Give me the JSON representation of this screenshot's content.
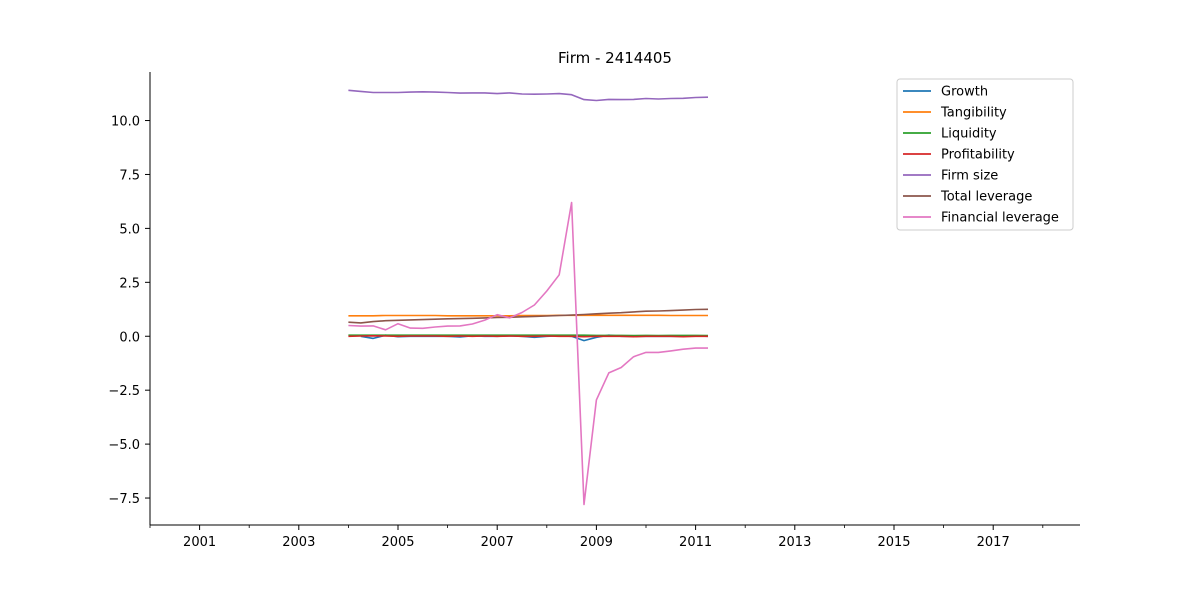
{
  "chart_data": {
    "type": "line",
    "title": "Firm - 2414405",
    "xlabel": "",
    "ylabel": "",
    "x_ticks": [
      "2001",
      "2003",
      "2005",
      "2007",
      "2009",
      "2011",
      "2013",
      "2015",
      "2017"
    ],
    "y_ticks": [
      "10.0",
      "7.5",
      "5.0",
      "2.5",
      "0.0",
      "−2.5",
      "−5.0",
      "−7.5"
    ],
    "xlim": [
      "2000-01-01",
      "2018-10-01"
    ],
    "ylim": [
      -8.75,
      12.25
    ],
    "grid": false,
    "legend_position": "top-right",
    "x": [
      "2004-01",
      "2004-04",
      "2004-07",
      "2004-10",
      "2005-01",
      "2005-04",
      "2005-07",
      "2005-10",
      "2006-01",
      "2006-04",
      "2006-07",
      "2006-10",
      "2007-01",
      "2007-04",
      "2007-07",
      "2007-10",
      "2008-01",
      "2008-04",
      "2008-07",
      "2008-10",
      "2009-01",
      "2009-04",
      "2009-07",
      "2009-10",
      "2010-01",
      "2010-04",
      "2010-07",
      "2010-10",
      "2011-01",
      "2011-04"
    ],
    "series": [
      {
        "name": "Growth",
        "color": "#1f77b4",
        "values": [
          null,
          0.0,
          -0.1,
          0.05,
          -0.02,
          0.0,
          0.0,
          0.0,
          0.0,
          -0.03,
          0.02,
          0.0,
          0.0,
          0.02,
          0.0,
          -0.05,
          0.0,
          0.02,
          0.0,
          -0.2,
          -0.05,
          0.05,
          0.0,
          0.0,
          0.0,
          0.0,
          0.0,
          0.0,
          0.02,
          0.0
        ]
      },
      {
        "name": "Tangibility",
        "color": "#ff7f0e",
        "values": [
          0.95,
          0.95,
          0.95,
          0.96,
          0.96,
          0.96,
          0.96,
          0.96,
          0.95,
          0.95,
          0.95,
          0.95,
          0.95,
          0.95,
          0.96,
          0.96,
          0.96,
          0.97,
          0.97,
          0.97,
          0.97,
          0.97,
          0.97,
          0.97,
          0.97,
          0.97,
          0.96,
          0.96,
          0.96,
          0.96
        ]
      },
      {
        "name": "Liquidity",
        "color": "#2ca02c",
        "values": [
          0.05,
          0.05,
          0.05,
          0.05,
          0.05,
          0.05,
          0.05,
          0.05,
          0.05,
          0.05,
          0.05,
          0.05,
          0.05,
          0.05,
          0.05,
          0.05,
          0.05,
          0.05,
          0.05,
          0.05,
          0.04,
          0.04,
          0.04,
          0.03,
          0.04,
          0.03,
          0.04,
          0.04,
          0.04,
          0.03
        ]
      },
      {
        "name": "Profitability",
        "color": "#d62728",
        "values": [
          0.0,
          0.01,
          0.02,
          0.01,
          0.0,
          0.01,
          0.01,
          0.01,
          0.0,
          0.01,
          0.0,
          0.01,
          0.0,
          0.01,
          0.0,
          0.0,
          0.01,
          0.0,
          0.0,
          -0.02,
          0.0,
          0.0,
          0.0,
          -0.02,
          0.0,
          0.0,
          0.0,
          -0.02,
          0.0,
          0.0
        ]
      },
      {
        "name": "Firm size",
        "color": "#9467bd",
        "values": [
          11.4,
          11.35,
          11.3,
          11.3,
          11.3,
          11.32,
          11.33,
          11.32,
          11.3,
          11.27,
          11.28,
          11.28,
          11.25,
          11.28,
          11.23,
          11.22,
          11.23,
          11.25,
          11.2,
          10.97,
          10.93,
          10.98,
          10.97,
          10.98,
          11.02,
          11.0,
          11.02,
          11.03,
          11.07,
          11.08
        ]
      },
      {
        "name": "Total leverage",
        "color": "#8c564b",
        "values": [
          0.65,
          0.62,
          0.68,
          0.72,
          0.74,
          0.76,
          0.77,
          0.79,
          0.81,
          0.82,
          0.83,
          0.85,
          0.87,
          0.88,
          0.9,
          0.92,
          0.94,
          0.96,
          0.98,
          1.01,
          1.04,
          1.07,
          1.09,
          1.13,
          1.16,
          1.17,
          1.19,
          1.21,
          1.24,
          1.25
        ]
      },
      {
        "name": "Financial leverage",
        "color": "#e377c2",
        "values": [
          0.5,
          0.47,
          0.48,
          0.3,
          0.58,
          0.38,
          0.37,
          0.43,
          0.47,
          0.48,
          0.57,
          0.75,
          1.0,
          0.85,
          1.1,
          1.45,
          2.1,
          2.85,
          6.2,
          -7.8,
          -2.95,
          -1.7,
          -1.45,
          -0.95,
          -0.75,
          -0.75,
          -0.68,
          -0.6,
          -0.55,
          -0.55
        ]
      }
    ]
  }
}
